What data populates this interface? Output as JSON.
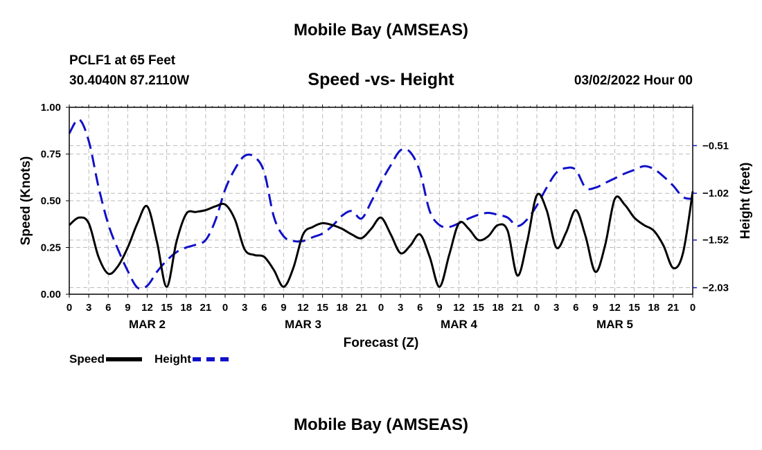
{
  "header": {
    "top_title": "Mobile Bay (AMSEAS)",
    "station": "PCLF1 at 65 Feet",
    "coords": "30.4040N  87.2110W",
    "subtitle": "Speed -vs- Height",
    "datetime": "03/02/2022 Hour 00"
  },
  "footer": {
    "bottom_title": "Mobile Bay (AMSEAS)"
  },
  "legend": {
    "speed_label": "Speed",
    "height_label": "Height"
  },
  "colors": {
    "speed": "#000000",
    "height": "#1010c8",
    "grid": "#bbbbbb"
  },
  "chart_data": {
    "type": "line",
    "xlabel": "Forecast (Z)",
    "ylabel": "Speed (Knots)",
    "y2label": "Height (feet)",
    "x_range": [
      0,
      96
    ],
    "ylim": [
      0,
      1.0
    ],
    "y2lim": [
      -2.1,
      -0.1
    ],
    "yticks": [
      0,
      0.25,
      0.5,
      0.75,
      1.0
    ],
    "ytick_labels": [
      "0.00",
      "0.25",
      "0.50",
      "0.75",
      "1.00"
    ],
    "y2ticks": [
      -2.03,
      -1.52,
      -1.02,
      -0.51
    ],
    "y2tick_labels": [
      "−2.03",
      "−1.52",
      "−1.02",
      "−0.51"
    ],
    "xticks": [
      0,
      3,
      6,
      9,
      12,
      15,
      18,
      21,
      24,
      27,
      30,
      33,
      36,
      39,
      42,
      45,
      48,
      51,
      54,
      57,
      60,
      63,
      66,
      69,
      72,
      75,
      78,
      81,
      84,
      87,
      90,
      93,
      96
    ],
    "xtick_labels": [
      "0",
      "3",
      "6",
      "9",
      "12",
      "15",
      "18",
      "21",
      "0",
      "3",
      "6",
      "9",
      "12",
      "15",
      "18",
      "21",
      "0",
      "3",
      "6",
      "9",
      "12",
      "15",
      "18",
      "21",
      "0",
      "3",
      "6",
      "9",
      "12",
      "15",
      "18",
      "21",
      "0"
    ],
    "day_labels": [
      {
        "label": "MAR 2",
        "x": 12
      },
      {
        "label": "MAR 3",
        "x": 36
      },
      {
        "label": "MAR 4",
        "x": 60
      },
      {
        "label": "MAR 5",
        "x": 84
      }
    ],
    "grid": true,
    "series": [
      {
        "name": "Speed",
        "axis": "left",
        "style": "solid",
        "x": [
          0,
          1.5,
          3,
          4.5,
          6,
          7.5,
          9,
          10.5,
          12,
          13.5,
          15,
          16.5,
          18,
          19.5,
          21,
          22.5,
          24,
          25.5,
          27,
          28.5,
          30,
          31.5,
          33,
          34.5,
          36,
          37.5,
          39,
          40.5,
          42,
          43.5,
          45,
          46.5,
          48,
          49.5,
          51,
          52.5,
          54,
          55.5,
          57,
          58.5,
          60,
          61.5,
          63,
          64.5,
          66,
          67.5,
          69,
          70.5,
          72,
          73.5,
          75,
          76.5,
          78,
          79.5,
          81,
          82.5,
          84,
          85.5,
          87,
          88.5,
          90,
          91.5,
          93,
          94.5,
          96
        ],
        "values": [
          0.37,
          0.41,
          0.38,
          0.2,
          0.11,
          0.15,
          0.25,
          0.38,
          0.47,
          0.28,
          0.04,
          0.28,
          0.43,
          0.44,
          0.45,
          0.47,
          0.48,
          0.4,
          0.24,
          0.21,
          0.2,
          0.13,
          0.04,
          0.14,
          0.32,
          0.36,
          0.38,
          0.37,
          0.35,
          0.32,
          0.3,
          0.35,
          0.41,
          0.32,
          0.22,
          0.26,
          0.32,
          0.2,
          0.04,
          0.21,
          0.38,
          0.35,
          0.29,
          0.31,
          0.37,
          0.34,
          0.1,
          0.28,
          0.53,
          0.45,
          0.25,
          0.33,
          0.45,
          0.31,
          0.12,
          0.26,
          0.51,
          0.48,
          0.41,
          0.37,
          0.34,
          0.26,
          0.14,
          0.22,
          0.55
        ]
      },
      {
        "name": "Height",
        "axis": "right",
        "style": "dashed",
        "x": [
          0,
          1.5,
          3,
          4.5,
          6,
          7.5,
          9,
          10.5,
          12,
          13.5,
          15,
          16.5,
          18,
          19.5,
          21,
          22.5,
          24,
          25.5,
          27,
          28.5,
          30,
          31.5,
          33,
          34.5,
          36,
          37.5,
          39,
          40.5,
          42,
          43.5,
          45,
          46.5,
          48,
          49.5,
          51,
          52.5,
          54,
          55.5,
          57,
          58.5,
          60,
          61.5,
          63,
          64.5,
          66,
          67.5,
          69,
          70.5,
          72,
          73.5,
          75,
          76.5,
          78,
          79.5,
          81,
          82.5,
          84,
          85.5,
          87,
          88.5,
          90,
          91.5,
          93,
          94.5,
          96
        ],
        "values": [
          -0.38,
          -0.23,
          -0.46,
          -0.95,
          -1.35,
          -1.62,
          -1.85,
          -2.03,
          -2.01,
          -1.86,
          -1.74,
          -1.65,
          -1.6,
          -1.57,
          -1.52,
          -1.31,
          -0.98,
          -0.76,
          -0.62,
          -0.63,
          -0.79,
          -1.27,
          -1.48,
          -1.53,
          -1.53,
          -1.49,
          -1.45,
          -1.37,
          -1.26,
          -1.21,
          -1.29,
          -1.11,
          -0.9,
          -0.72,
          -0.56,
          -0.58,
          -0.79,
          -1.21,
          -1.36,
          -1.38,
          -1.34,
          -1.29,
          -1.25,
          -1.23,
          -1.25,
          -1.28,
          -1.37,
          -1.3,
          -1.15,
          -0.96,
          -0.8,
          -0.75,
          -0.77,
          -0.96,
          -0.96,
          -0.91,
          -0.86,
          -0.81,
          -0.77,
          -0.73,
          -0.76,
          -0.84,
          -0.94,
          -1.06,
          -1.08
        ]
      }
    ]
  }
}
